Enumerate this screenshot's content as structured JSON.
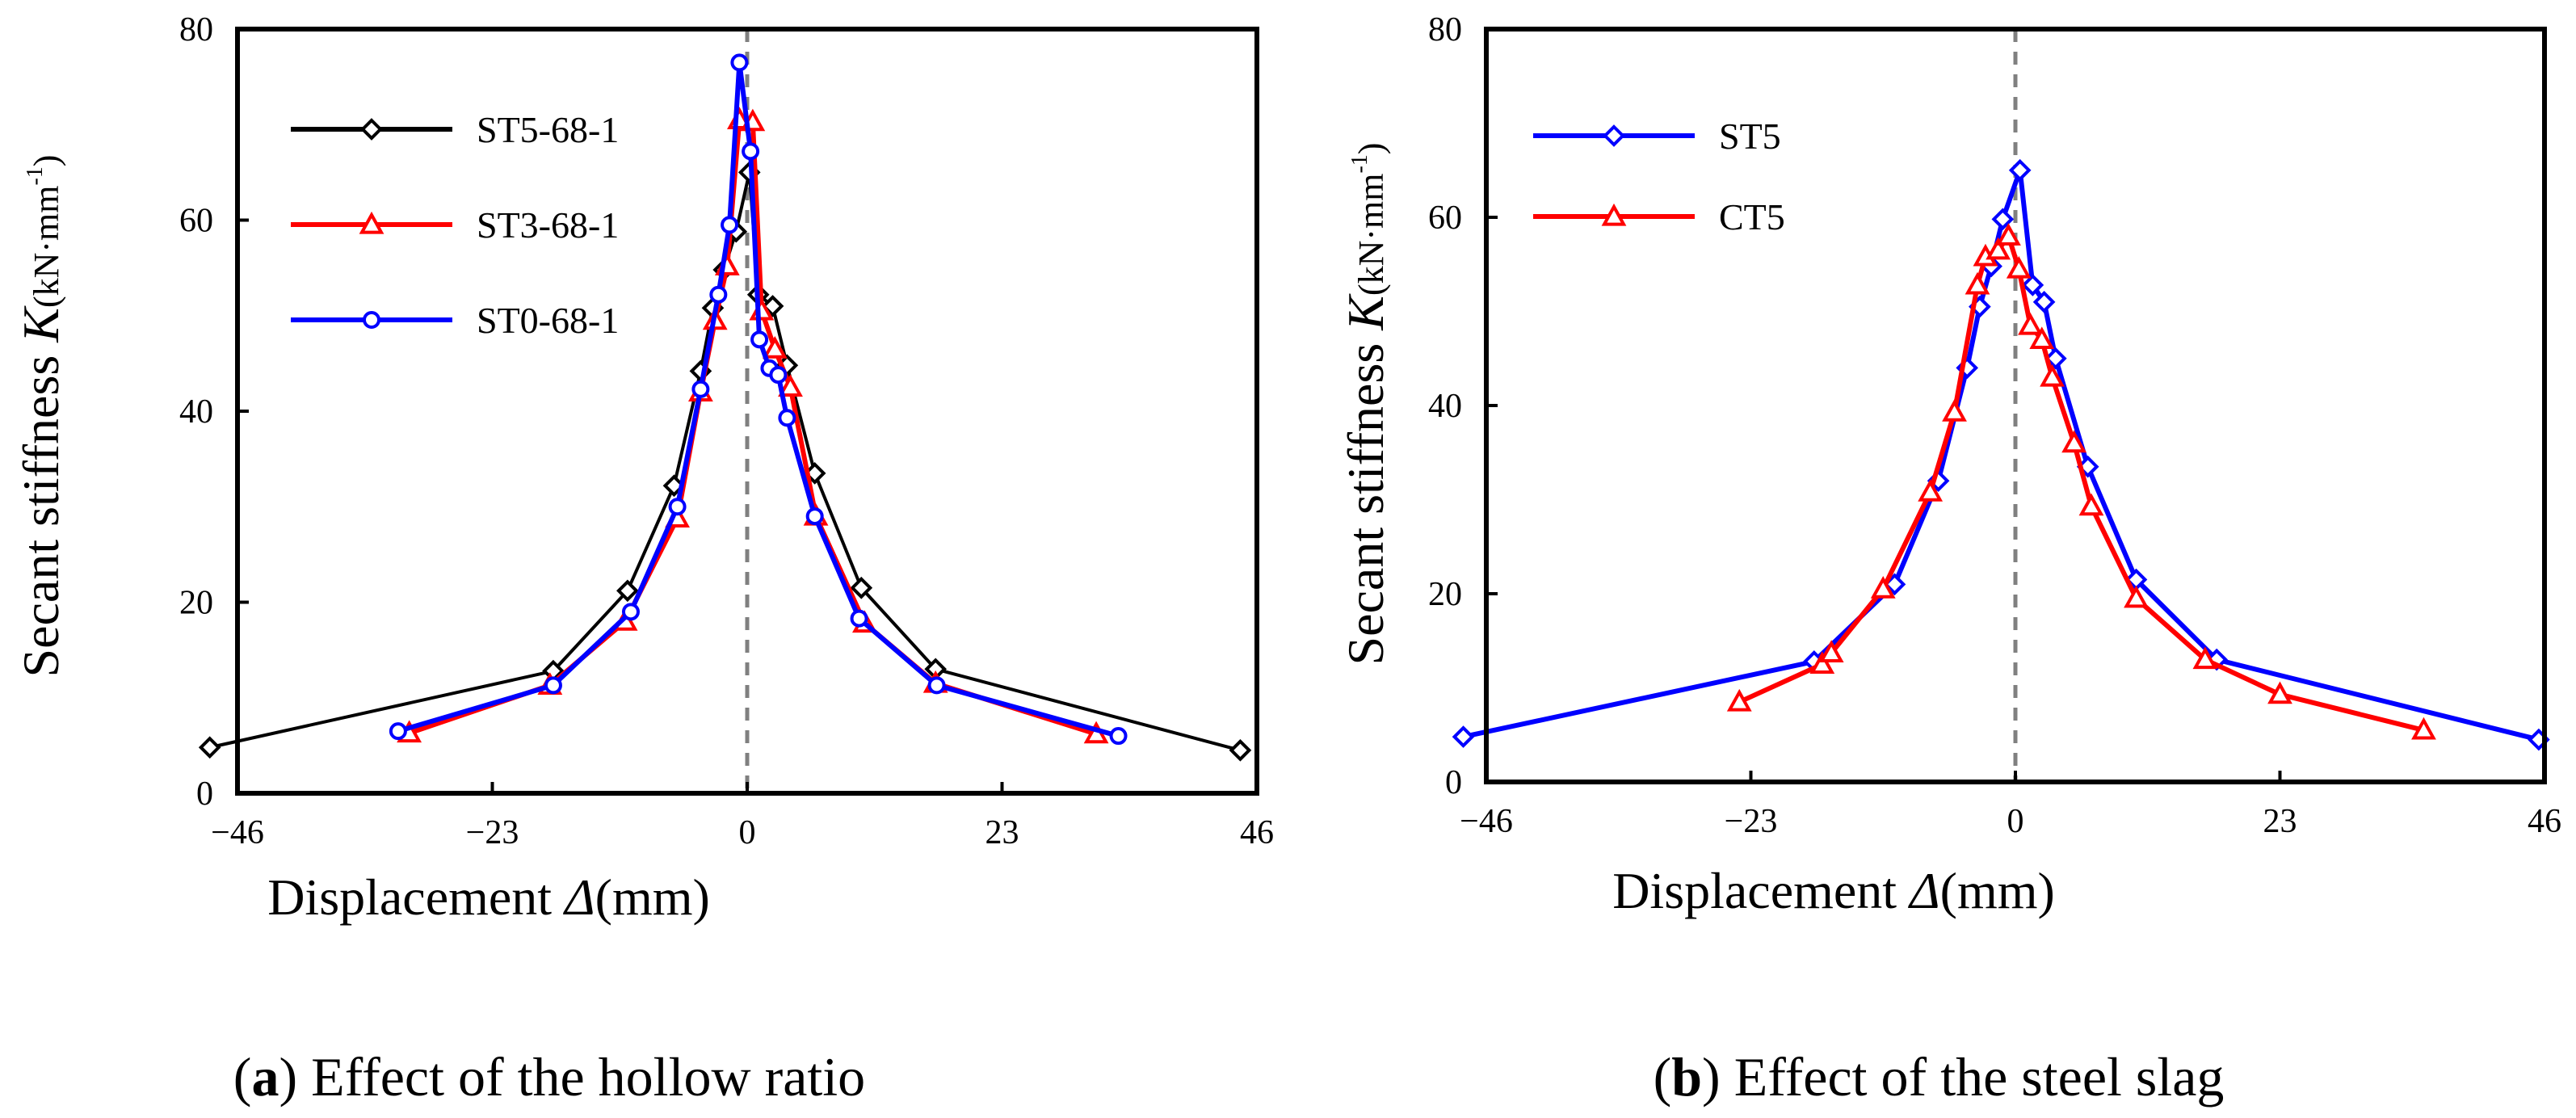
{
  "chart_data": [
    {
      "type": "line",
      "panel": "a",
      "caption_letter": "a",
      "caption_open": "(",
      "caption_close": ")",
      "caption_text": " Effect of the hollow ratio",
      "xlabel_text": "Displacement ",
      "xlabel_symbol": "Δ",
      "xlabel_unit": "(mm)",
      "ylabel_text": "Secant stiffness ",
      "ylabel_symbol": "K",
      "ylabel_unit_prefix": "(kN·mm",
      "ylabel_unit_sup": "-1",
      "ylabel_unit_suffix": ")",
      "xlim": [
        -46,
        46
      ],
      "ylim": [
        0,
        80
      ],
      "xticks": [
        -46,
        -23,
        0,
        23,
        46
      ],
      "xtick_labels": [
        "−46",
        "−23",
        "0",
        "23",
        "46"
      ],
      "yticks": [
        0,
        20,
        40,
        60,
        80
      ],
      "ytick_labels": [
        "0",
        "20",
        "40",
        "60",
        "80"
      ],
      "zero_line": "dashed",
      "legend_position": "top-left",
      "series": [
        {
          "name": "ST5-68-1",
          "color": "#000000",
          "marker": "diamond",
          "x": [
            -48.5,
            -17.5,
            -10.8,
            -6.6,
            -4.2,
            -3.1,
            -2.1,
            -1.0,
            0.2,
            1.0,
            2.3,
            3.6,
            6.1,
            10.3,
            17.0,
            44.5
          ],
          "y": [
            4.8,
            12.8,
            21.2,
            32.2,
            44.2,
            50.8,
            54.8,
            58.8,
            65.0,
            52.2,
            51.0,
            44.8,
            33.5,
            21.5,
            13.0,
            4.5
          ]
        },
        {
          "name": "ST3-68-1",
          "color": "#ff0000",
          "marker": "triangle",
          "x": [
            -30.5,
            -17.8,
            -11.0,
            -6.3,
            -4.2,
            -2.9,
            -1.8,
            -0.7,
            0.5,
            1.3,
            2.5,
            3.9,
            6.2,
            10.6,
            17.0,
            31.5
          ],
          "y": [
            6.3,
            11.3,
            18.0,
            28.8,
            42.0,
            49.5,
            55.2,
            70.5,
            70.3,
            50.5,
            46.5,
            42.5,
            29.0,
            17.8,
            11.5,
            6.2
          ]
        },
        {
          "name": "ST0-68-1",
          "color": "#0000ff",
          "marker": "circle",
          "x": [
            -31.5,
            -17.5,
            -10.5,
            -6.3,
            -4.2,
            -2.6,
            -1.6,
            -0.7,
            0.3,
            1.1,
            2.0,
            2.8,
            3.6,
            6.1,
            10.1,
            17.1,
            33.5
          ],
          "y": [
            6.5,
            11.3,
            19.0,
            30.0,
            42.3,
            52.2,
            59.5,
            76.5,
            67.2,
            47.5,
            44.5,
            43.8,
            39.3,
            29.0,
            18.3,
            11.3,
            6.0
          ]
        }
      ]
    },
    {
      "type": "line",
      "panel": "b",
      "caption_letter": "b",
      "caption_open": "(",
      "caption_close": ")",
      "caption_text": " Effect of the steel slag",
      "xlabel_text": "Displacement ",
      "xlabel_symbol": "Δ",
      "xlabel_unit": "(mm)",
      "ylabel_text": "Secant stiffness ",
      "ylabel_symbol": "K",
      "ylabel_unit_prefix": "(kN·mm",
      "ylabel_unit_sup": "-1",
      "ylabel_unit_suffix": ")",
      "xlim": [
        -46,
        46
      ],
      "ylim": [
        0,
        80
      ],
      "xticks": [
        -46,
        -23,
        0,
        23,
        46
      ],
      "xtick_labels": [
        "−46",
        "−23",
        "0",
        "23",
        "46"
      ],
      "yticks": [
        0,
        20,
        40,
        60,
        80
      ],
      "ytick_labels": [
        "0",
        "20",
        "40",
        "60",
        "80"
      ],
      "zero_line": "dashed",
      "legend_position": "top-left",
      "series": [
        {
          "name": "ST5",
          "color": "#0000ff",
          "marker": "diamond",
          "x": [
            -48.0,
            -17.5,
            -10.5,
            -6.7,
            -4.2,
            -3.1,
            -2.1,
            -1.1,
            0.4,
            1.5,
            2.5,
            3.5,
            6.3,
            10.5,
            17.5,
            45.5
          ],
          "y": [
            4.8,
            12.8,
            21.0,
            32.0,
            44.0,
            50.5,
            54.8,
            59.8,
            65.0,
            52.8,
            51.0,
            45.0,
            33.5,
            21.5,
            13.0,
            4.5
          ]
        },
        {
          "name": "CT5",
          "color": "#ff0000",
          "marker": "triangle",
          "x": [
            -24.0,
            -16.8,
            -16.0,
            -11.5,
            -7.4,
            -5.3,
            -3.3,
            -2.6,
            -1.5,
            -0.6,
            0.3,
            1.3,
            2.3,
            3.2,
            5.1,
            6.6,
            10.5,
            16.5,
            23.0,
            35.5
          ],
          "y": [
            8.5,
            12.5,
            13.7,
            20.5,
            30.8,
            39.3,
            52.8,
            55.8,
            56.5,
            58.0,
            54.5,
            48.5,
            47.0,
            43.0,
            36.0,
            29.3,
            19.5,
            13.0,
            9.3,
            5.5
          ]
        }
      ]
    }
  ]
}
